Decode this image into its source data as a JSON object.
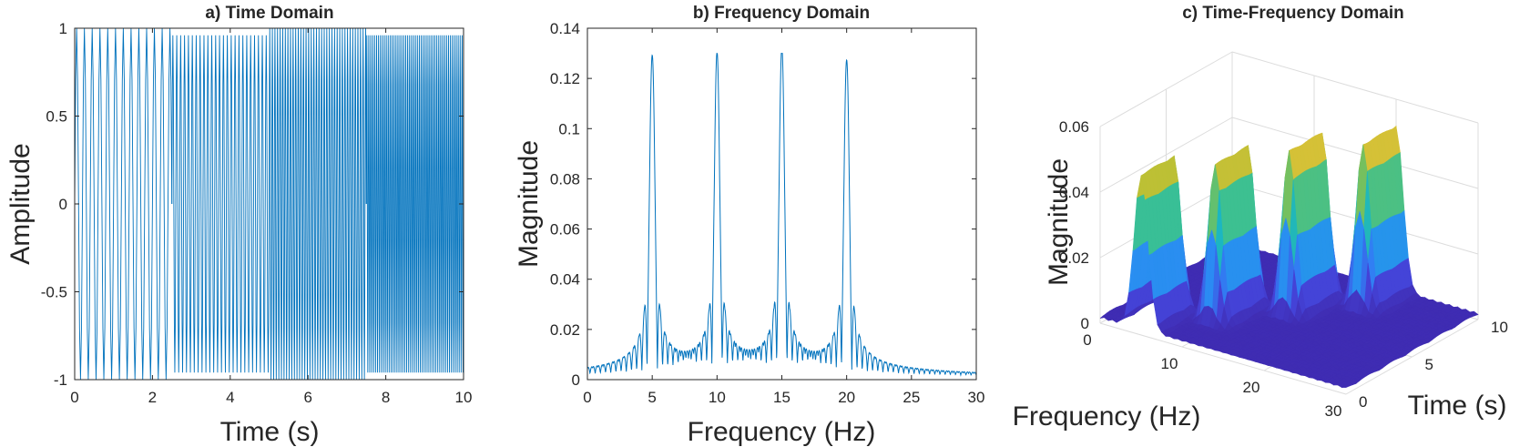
{
  "chart_data": [
    {
      "type": "line",
      "title": "a) Time Domain",
      "xlabel": "Time (s)",
      "ylabel": "Amplitude",
      "xlim": [
        0,
        10
      ],
      "ylim": [
        -1,
        1
      ],
      "xticks": [
        "0",
        "2",
        "4",
        "6",
        "8",
        "10"
      ],
      "yticks": [
        "-1",
        "-0.5",
        "0",
        "0.5",
        "1"
      ],
      "color": "#0072BD",
      "segments": [
        {
          "t_start": 0,
          "t_end": 2.5,
          "freq_hz": 5,
          "amp": 1.0
        },
        {
          "t_start": 2.5,
          "t_end": 5,
          "freq_hz": 10,
          "amp": 0.96
        },
        {
          "t_start": 5,
          "t_end": 7.5,
          "freq_hz": 15,
          "amp": 1.0
        },
        {
          "t_start": 7.5,
          "t_end": 10,
          "freq_hz": 20,
          "amp": 0.96
        }
      ]
    },
    {
      "type": "line",
      "title": "b) Frequency Domain",
      "xlabel": "Frequency (Hz)",
      "ylabel": "Magnitude",
      "xlim": [
        0,
        30
      ],
      "ylim": [
        0,
        0.14
      ],
      "xticks": [
        "0",
        "5",
        "10",
        "15",
        "20",
        "25",
        "30"
      ],
      "yticks": [
        "0",
        "0.02",
        "0.04",
        "0.06",
        "0.08",
        "0.1",
        "0.12",
        "0.14"
      ],
      "color": "#0072BD",
      "peaks": [
        {
          "x": 5,
          "y": 0.125
        },
        {
          "x": 10,
          "y": 0.124
        },
        {
          "x": 15,
          "y": 0.126
        },
        {
          "x": 20,
          "y": 0.123
        }
      ]
    },
    {
      "type": "surface",
      "title": "c) Time-Frequency Domain",
      "xlabel": "Frequency (Hz)",
      "ylabel": "Time (s)",
      "zlabel": "Magnitude",
      "xlim": [
        0,
        30
      ],
      "ylim": [
        0,
        10
      ],
      "zlim": [
        0,
        0.06
      ],
      "xticks": [
        "0",
        "10",
        "20",
        "30"
      ],
      "yticks": [
        "0",
        "5",
        "10"
      ],
      "zticks": [
        "0",
        "0.02",
        "0.04",
        "0.06"
      ],
      "colormap": [
        "#3e26a8",
        "#4443d8",
        "#2e87f7",
        "#12b3cf",
        "#3ec08f",
        "#a9c033",
        "#f3c13a",
        "#f9fb0e"
      ],
      "peaks": [
        {
          "freq_hz": 5,
          "time_s": 1.25,
          "magnitude": 0.047
        },
        {
          "freq_hz": 10,
          "time_s": 3.75,
          "magnitude": 0.048
        },
        {
          "freq_hz": 15,
          "time_s": 6.25,
          "magnitude": 0.05
        },
        {
          "freq_hz": 20,
          "time_s": 8.75,
          "magnitude": 0.05
        }
      ]
    }
  ]
}
